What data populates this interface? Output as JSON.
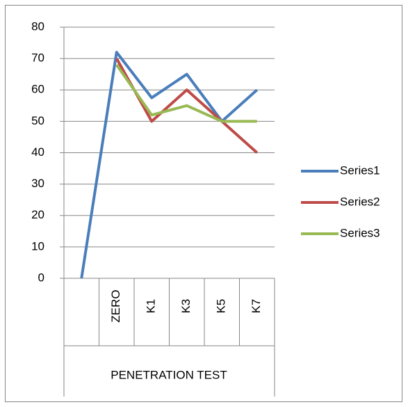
{
  "chart_data": {
    "type": "line",
    "categories": [
      null,
      "ZERO",
      "K1",
      "K3",
      "K5",
      "K7"
    ],
    "x_label": "PENETRATION TEST",
    "series": [
      {
        "name": "Series1",
        "color": "#4a7ebb",
        "values": [
          0,
          72,
          57.5,
          65,
          50,
          60
        ]
      },
      {
        "name": "Series2",
        "color": "#be4b48",
        "values": [
          null,
          70,
          50,
          60,
          50,
          40
        ]
      },
      {
        "name": "Series3",
        "color": "#98b954",
        "values": [
          null,
          68,
          52,
          55,
          50,
          50
        ]
      }
    ],
    "ylim": [
      0,
      80
    ],
    "yticks": [
      0,
      10,
      20,
      30,
      40,
      50,
      60,
      70,
      80
    ],
    "grid": true,
    "legend": "right"
  }
}
